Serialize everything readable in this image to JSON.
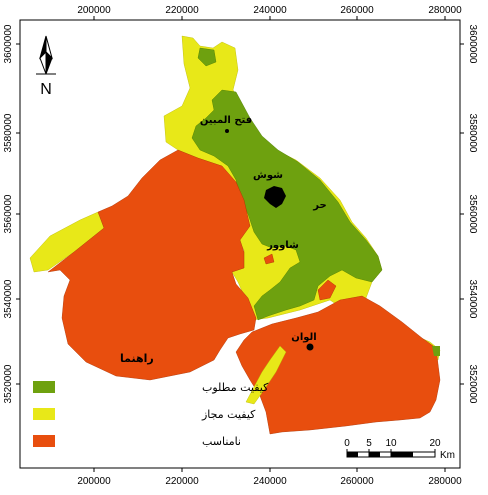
{
  "map": {
    "x_ticks": [
      "200000",
      "220000",
      "240000",
      "260000",
      "280000"
    ],
    "y_ticks": [
      "3600000",
      "3580000",
      "3560000",
      "3540000",
      "3520000"
    ],
    "north_arrow": {
      "icon": "north-arrow-icon",
      "label": "N"
    },
    "places": [
      {
        "id": "fath-almobin",
        "label": "فتح المبین"
      },
      {
        "id": "shush",
        "label": "شوش"
      },
      {
        "id": "hor",
        "label": "حر"
      },
      {
        "id": "shavur",
        "label": "شاوور"
      },
      {
        "id": "alvan",
        "label": "الوان"
      }
    ],
    "legend": {
      "title": "راهنما",
      "items": [
        {
          "label": "کیفیت مطلوب",
          "color": "#6ea10f"
        },
        {
          "label": "کیفیت مجاز",
          "color": "#e8e818"
        },
        {
          "label": "نامناسب",
          "color": "#e84e0e"
        }
      ]
    },
    "scale_bar": {
      "ticks": [
        "0",
        "5",
        "10",
        "20"
      ],
      "unit": "Km"
    }
  }
}
